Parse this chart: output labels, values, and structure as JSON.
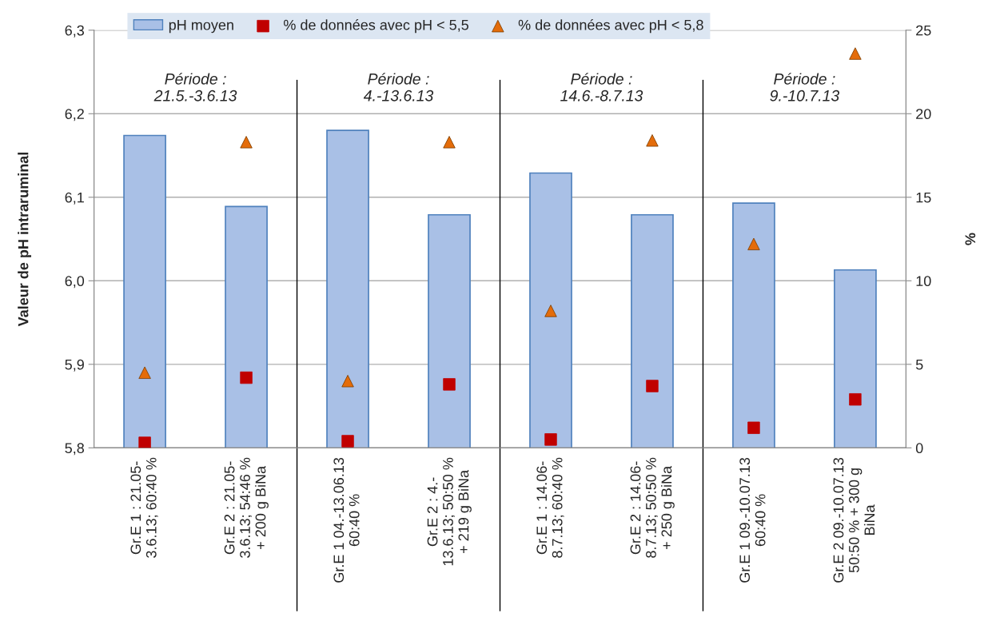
{
  "chart_data": {
    "type": "bar",
    "categories": [
      "Gr.E 1 : 21.05-\n3.6.13; 60:40 %",
      "Gr.E 2 : 21.05-\n3.6.13; 54:46 %\n+ 200 g BiNa",
      "Gr.E 1 04.-13.06.13\n60:40 %",
      "Gr.E 2 : 4.-\n13.6.13; 50:50 %\n+ 219 g BiNa",
      "Gr.E 1 : 14.06-\n8.7.13; 60:40 %",
      "Gr.E 2 : 14.06-\n8.7.13; 50:50 %\n+ 250 g BiNa",
      "Gr.E 1 09.-10.07.13\n60:40 %",
      "Gr.E 2 09.-10.07.13\n50:50 % + 300 g\nBiNa"
    ],
    "series": [
      {
        "name": "pH moyen",
        "axis": "y",
        "color": "#a9c0e6",
        "values": [
          6.174,
          6.089,
          6.18,
          6.079,
          6.129,
          6.079,
          6.093,
          6.013
        ]
      },
      {
        "name": "% de données avec pH < 5,5",
        "type": "scatter",
        "axis": "y2",
        "marker": "square",
        "color": "#c00000",
        "values": [
          0.3,
          4.2,
          0.4,
          3.8,
          0.5,
          3.7,
          1.2,
          2.9
        ]
      },
      {
        "name": "% de données avec pH < 5,8",
        "type": "scatter",
        "axis": "y2",
        "marker": "triangle",
        "color": "#e46c0a",
        "values": [
          4.5,
          18.3,
          4.0,
          18.3,
          8.2,
          18.4,
          12.2,
          23.6
        ]
      }
    ],
    "ylabel": "Valeur de pH intraruminal",
    "y2label": "%",
    "ylim": [
      5.8,
      6.3
    ],
    "yticks": [
      {
        "value": 5.8,
        "label": "5,8"
      },
      {
        "value": 5.9,
        "label": "5,9"
      },
      {
        "value": 6.0,
        "label": "6,0"
      },
      {
        "value": 6.1,
        "label": "6,1"
      },
      {
        "value": 6.2,
        "label": "6,2"
      },
      {
        "value": 6.3,
        "label": "6,3"
      }
    ],
    "y2lim": [
      0,
      25
    ],
    "y2ticks": [
      0,
      5,
      10,
      15,
      20,
      25
    ],
    "annotations": [
      "Période :\n21.5.-3.6.13",
      "Période :\n4.-13.6.13",
      "Période :\n14.6.-8.7.13",
      "Période :\n9.-10.7.13"
    ],
    "grid": "y",
    "legend": "top"
  }
}
